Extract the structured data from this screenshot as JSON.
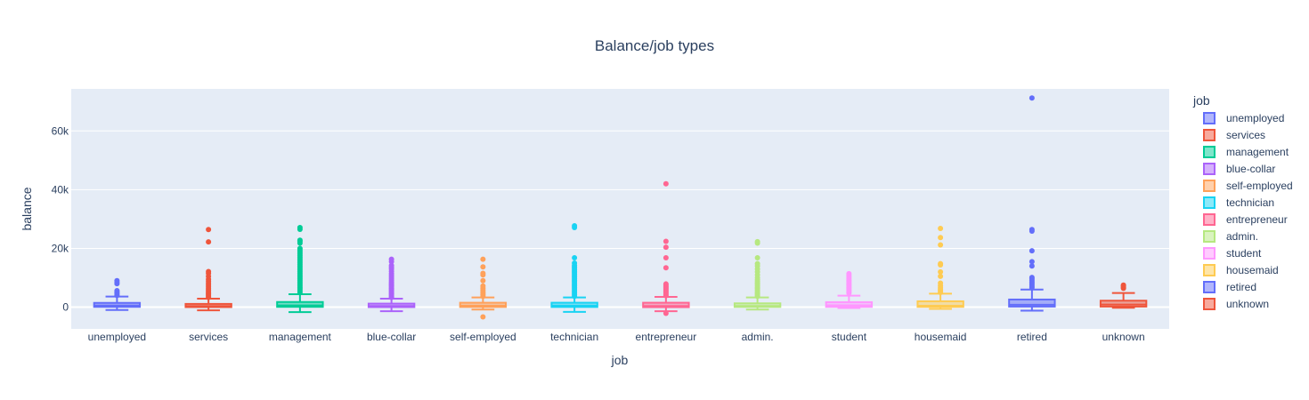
{
  "chart_data": {
    "type": "box",
    "title": "Balance/job types",
    "xlabel": "job",
    "ylabel": "balance",
    "ylim": [
      -7400,
      74300
    ],
    "yticks": [
      0,
      20000,
      40000,
      60000
    ],
    "ytick_labels": [
      "0",
      "20k",
      "40k",
      "60k"
    ],
    "legend_title": "job",
    "legend_position": "right",
    "series": [
      {
        "name": "unemployed",
        "color": "#636efa",
        "stats": {
          "lower_fence": -970,
          "q1": 100,
          "median": 530,
          "q3": 1450,
          "upper_fence": 3600
        },
        "outliers": [
          4000,
          4400,
          4800,
          5200,
          5600,
          8000,
          8500,
          9000
        ]
      },
      {
        "name": "services",
        "color": "#EF553B",
        "stats": {
          "lower_fence": -1100,
          "q1": 30,
          "median": 340,
          "q3": 1100,
          "upper_fence": 2900
        },
        "outliers": [
          3300,
          3700,
          4100,
          4500,
          4900,
          5300,
          5800,
          6300,
          6900,
          7500,
          8100,
          8800,
          9500,
          10500,
          11500,
          12100,
          22200,
          26400
        ]
      },
      {
        "name": "management",
        "color": "#00cc96",
        "stats": {
          "lower_fence": -1700,
          "q1": 100,
          "median": 580,
          "q3": 1750,
          "upper_fence": 4400
        },
        "outliers": [
          5000,
          5600,
          6200,
          6800,
          7400,
          8000,
          8600,
          9200,
          9800,
          10400,
          11000,
          11600,
          12200,
          12800,
          13400,
          14000,
          14600,
          15200,
          15800,
          16400,
          17000,
          17600,
          18200,
          18800,
          19400,
          20000,
          21800,
          22400,
          22800,
          26500,
          27100
        ]
      },
      {
        "name": "blue-collar",
        "color": "#ab63fa",
        "stats": {
          "lower_fence": -1400,
          "q1": 30,
          "median": 400,
          "q3": 1200,
          "upper_fence": 2900
        },
        "outliers": [
          3300,
          3700,
          4100,
          4500,
          4900,
          5300,
          5700,
          6100,
          6500,
          6900,
          7300,
          7700,
          8100,
          8500,
          9000,
          9600,
          10200,
          10800,
          11400,
          12200,
          13000,
          13600,
          14200,
          15500,
          16300
        ]
      },
      {
        "name": "self-employed",
        "color": "#FFA15A",
        "stats": {
          "lower_fence": -800,
          "q1": 70,
          "median": 500,
          "q3": 1500,
          "upper_fence": 3300
        },
        "outliers": [
          3700,
          4200,
          4700,
          5200,
          5800,
          6500,
          7200,
          9000,
          11000,
          11500,
          13700,
          16300,
          -3300
        ]
      },
      {
        "name": "technician",
        "color": "#19d3f3",
        "stats": {
          "lower_fence": -1600,
          "q1": 60,
          "median": 490,
          "q3": 1500,
          "upper_fence": 3300
        },
        "outliers": [
          3700,
          4200,
          4700,
          5200,
          5700,
          6200,
          6700,
          7200,
          7700,
          8200,
          8700,
          9200,
          9700,
          10200,
          10700,
          11200,
          11700,
          12200,
          12700,
          13200,
          13700,
          14200,
          15000,
          16800,
          27100,
          27700
        ]
      },
      {
        "name": "entrepreneur",
        "color": "#FF6692",
        "stats": {
          "lower_fence": -1400,
          "q1": 0,
          "median": 380,
          "q3": 1500,
          "upper_fence": 3500
        },
        "outliers": [
          3900,
          4300,
          4700,
          5100,
          5500,
          5900,
          6300,
          6700,
          7100,
          7500,
          7900,
          13400,
          16800,
          20400,
          22400,
          42000,
          -2100
        ]
      },
      {
        "name": "admin.",
        "color": "#B6E880",
        "stats": {
          "lower_fence": -800,
          "q1": 80,
          "median": 400,
          "q3": 1300,
          "upper_fence": 3300
        },
        "outliers": [
          3700,
          4100,
          4500,
          4900,
          5300,
          5800,
          6300,
          6800,
          7300,
          7800,
          8300,
          8800,
          9300,
          10000,
          11000,
          12000,
          13000,
          14000,
          14800,
          16800,
          21800,
          22300
        ]
      },
      {
        "name": "student",
        "color": "#FF97FF",
        "stats": {
          "lower_fence": -300,
          "q1": 100,
          "median": 600,
          "q3": 1700,
          "upper_fence": 3900
        },
        "outliers": [
          4800,
          5200,
          5600,
          6000,
          6400,
          6800,
          7200,
          7600,
          8000,
          8400,
          8800,
          9200,
          9800,
          10300,
          10800,
          11400
        ]
      },
      {
        "name": "housemaid",
        "color": "#FECB52",
        "stats": {
          "lower_fence": -600,
          "q1": 100,
          "median": 460,
          "q3": 2000,
          "upper_fence": 4600
        },
        "outliers": [
          5000,
          5500,
          6000,
          6600,
          7300,
          8200,
          10500,
          12000,
          14400,
          14800,
          21200,
          23700,
          26800
        ]
      },
      {
        "name": "retired",
        "color": "#636efa",
        "stats": {
          "lower_fence": -1200,
          "q1": 200,
          "median": 800,
          "q3": 2600,
          "upper_fence": 6000
        },
        "outliers": [
          6600,
          7100,
          7600,
          8100,
          8600,
          9100,
          9600,
          10100,
          14000,
          15500,
          19200,
          25900,
          26400,
          71200
        ]
      },
      {
        "name": "unknown",
        "color": "#EF553B",
        "stats": {
          "lower_fence": -200,
          "q1": 200,
          "median": 900,
          "q3": 2200,
          "upper_fence": 4800
        },
        "outliers": [
          6400,
          6800,
          7200,
          7500
        ]
      }
    ]
  }
}
